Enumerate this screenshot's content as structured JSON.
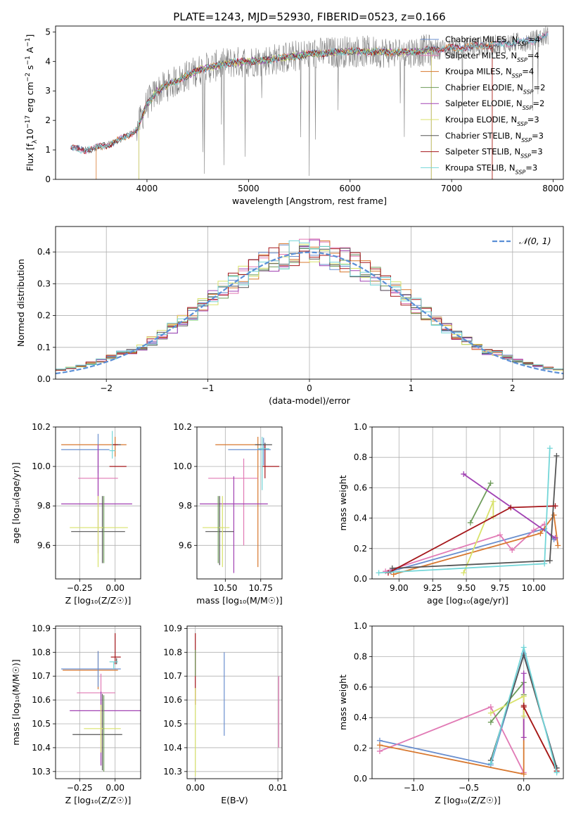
{
  "colors": {
    "series": [
      "#6a8fcf",
      "#e17ab5",
      "#d8782f",
      "#6e9c5a",
      "#a142b3",
      "#d8e26a",
      "#555555",
      "#a5171b",
      "#73d6d8"
    ],
    "grid": "#b0b0b0"
  },
  "chart_data": [
    {
      "id": "spectrum",
      "type": "line",
      "title": "PLATE=1243, MJD=52930, FIBERID=0523, z=0.166",
      "xlabel": "wavelength [Angstrom, rest frame]",
      "ylabel_parts": [
        "Flux [f",
        "λ",
        "10",
        "−17",
        " erg cm",
        "−2",
        " s",
        "−1",
        " A",
        "−1",
        "]"
      ],
      "xlim": [
        3100,
        8100
      ],
      "ylim": [
        0,
        5.2
      ],
      "xticks": [
        4000,
        5000,
        6000,
        7000,
        8000
      ],
      "yticks": [
        0,
        1,
        2,
        3,
        4,
        5
      ],
      "legend_position": "upper-right",
      "legend": [
        {
          "base": "Chabrier MILES, N",
          "sub": "SSP",
          "tail": "=4"
        },
        {
          "base": "Salpeter MILES, N",
          "sub": "SSP",
          "tail": "=4"
        },
        {
          "base": "Kroupa MILES, N",
          "sub": "SSP",
          "tail": "=4"
        },
        {
          "base": "Chabrier ELODIE, N",
          "sub": "SSP",
          "tail": "=2"
        },
        {
          "base": "Salpeter ELODIE, N",
          "sub": "SSP",
          "tail": "=2"
        },
        {
          "base": "Kroupa ELODIE, N",
          "sub": "SSP",
          "tail": "=3"
        },
        {
          "base": "Chabrier STELIB, N",
          "sub": "SSP",
          "tail": "=3"
        },
        {
          "base": "Salpeter STELIB, N",
          "sub": "SSP",
          "tail": "=3"
        },
        {
          "base": "Kroupa STELIB, N",
          "sub": "SSP",
          "tail": "=3"
        }
      ],
      "continuum": {
        "x": [
          3250,
          3400,
          3600,
          3800,
          3900,
          4000,
          4100,
          4300,
          4500,
          4800,
          5200,
          5600,
          6000,
          6500,
          7000,
          7400,
          7800,
          7950
        ],
        "y": [
          1.05,
          1.0,
          1.15,
          1.45,
          1.7,
          2.55,
          3.0,
          3.35,
          3.7,
          3.95,
          4.05,
          4.25,
          4.35,
          4.3,
          4.45,
          4.55,
          4.7,
          4.9
        ]
      }
    },
    {
      "id": "residuals",
      "type": "histogram",
      "xlabel": "(data-model)/error",
      "ylabel": "Normed distribution",
      "xlim": [
        -2.5,
        2.5
      ],
      "ylim": [
        0,
        0.48
      ],
      "xticks": [
        -2,
        -1,
        0,
        1,
        2
      ],
      "xtick_labels": [
        "−2",
        "−1",
        "0",
        "1",
        "2"
      ],
      "yticks": [
        0,
        0.1,
        0.2,
        0.3,
        0.4
      ],
      "yticklabels": [
        "0.0",
        "0.1",
        "0.2",
        "0.3",
        "0.4"
      ],
      "bin_width": 0.1,
      "legend_label": "𝒩(0, 1)",
      "legend_position": "upper-right",
      "grid": true
    },
    {
      "id": "age-vs-Z",
      "type": "errorbar",
      "xlabel": "Z [log₁₀(Z/Z☉)]",
      "ylabel": "age  [log₁₀(age/yr)]",
      "xlim": [
        -0.42,
        0.18
      ],
      "ylim": [
        9.43,
        10.2
      ],
      "xticks": [
        -0.25,
        0.0
      ],
      "xtick_labels": [
        "−0.25",
        "0.00"
      ],
      "yticks": [
        9.6,
        9.8,
        10.0,
        10.2
      ],
      "yticklabels": [
        "9.6",
        "9.8",
        "10.0",
        "10.2"
      ],
      "grid": true,
      "points": [
        {
          "x": 0.0,
          "y": 10.11,
          "xerr": [
            0.38,
            0.08
          ],
          "yerr": [
            0.06,
            0.04
          ],
          "series": 2
        },
        {
          "x": -0.12,
          "y": 10.085,
          "xerr": [
            0.26,
            0.08
          ],
          "yerr": [
            0.12,
            0.08
          ],
          "series": 0
        },
        {
          "x": 0.01,
          "y": 10.11,
          "xerr": [
            0.03,
            0.03
          ],
          "yerr": [
            0.0,
            0.0
          ],
          "series": 6
        },
        {
          "x": 0.0,
          "y": 10.11,
          "xerr": [
            0.02,
            0.02
          ],
          "yerr": [
            0.0,
            0.0
          ],
          "series": 7
        },
        {
          "x": 0.02,
          "y": 10.0,
          "xerr": [
            0.06,
            0.06
          ],
          "yerr": [
            0.0,
            0.0
          ],
          "series": 7
        },
        {
          "x": -0.02,
          "y": 10.08,
          "xerr": [
            0.02,
            0.02
          ],
          "yerr": [
            0.04,
            0.1
          ],
          "series": 8
        },
        {
          "x": -0.12,
          "y": 9.94,
          "xerr": [
            0.14,
            0.14
          ],
          "yerr": [
            0.12,
            0.14
          ],
          "series": 1
        },
        {
          "x": -0.12,
          "y": 9.81,
          "xerr": [
            0.26,
            0.24
          ],
          "yerr": [
            0.25,
            0.3
          ],
          "series": 4
        },
        {
          "x": -0.09,
          "y": 9.67,
          "xerr": [
            0.22,
            0.16
          ],
          "yerr": [
            0.16,
            0.18
          ],
          "series": 6
        },
        {
          "x": -0.12,
          "y": 9.69,
          "xerr": [
            0.2,
            0.21
          ],
          "yerr": [
            0.2,
            0.16
          ],
          "series": 5
        },
        {
          "x": -0.08,
          "y": 9.73,
          "xerr": [
            0.0,
            0.0
          ],
          "yerr": [
            0.22,
            0.12
          ],
          "series": 3
        }
      ]
    },
    {
      "id": "age-vs-mass",
      "type": "errorbar",
      "xlabel": "mass [log₁₀(M/M☉)]",
      "ylabel": "",
      "xlim": [
        10.3,
        10.9
      ],
      "ylim": [
        9.43,
        10.2
      ],
      "xticks": [
        10.5,
        10.75
      ],
      "xtick_labels": [
        "10.50",
        "10.75"
      ],
      "yticks": [
        9.6,
        9.8,
        10.0,
        10.2
      ],
      "yticklabels": [
        "9.6",
        "9.8",
        "10.0",
        "10.2"
      ],
      "grid": true,
      "points": [
        {
          "x": 10.73,
          "y": 10.11,
          "xerr": [
            0.3,
            0.04
          ],
          "yerr": [
            0.62,
            0.04
          ],
          "series": 2
        },
        {
          "x": 10.77,
          "y": 10.085,
          "xerr": [
            0.25,
            0.05
          ],
          "yerr": [
            0.08,
            0.06
          ],
          "series": 0
        },
        {
          "x": 10.78,
          "y": 10.11,
          "xerr": [
            0.07,
            0.05
          ],
          "yerr": [
            0.02,
            0.01
          ],
          "series": 6
        },
        {
          "x": 10.78,
          "y": 10.0,
          "xerr": [
            0.02,
            0.1
          ],
          "yerr": [
            0.06,
            0.11
          ],
          "series": 7
        },
        {
          "x": 10.76,
          "y": 10.09,
          "xerr": [
            0.03,
            0.05
          ],
          "yerr": [
            0.21,
            0.06
          ],
          "series": 8
        },
        {
          "x": 10.63,
          "y": 9.94,
          "xerr": [
            0.25,
            0.1
          ],
          "yerr": [
            0.34,
            0.1
          ],
          "series": 1
        },
        {
          "x": 10.56,
          "y": 9.81,
          "xerr": [
            0.24,
            0.24
          ],
          "yerr": [
            0.35,
            0.14
          ],
          "series": 4
        },
        {
          "x": 10.46,
          "y": 9.67,
          "xerr": [
            0.1,
            0.1
          ],
          "yerr": [
            0.17,
            0.18
          ],
          "series": 6
        },
        {
          "x": 10.48,
          "y": 9.69,
          "xerr": [
            0.14,
            0.05
          ],
          "yerr": [
            0.2,
            0.16
          ],
          "series": 5
        },
        {
          "x": 10.45,
          "y": 9.73,
          "xerr": [
            0.0,
            0.0
          ],
          "yerr": [
            0.22,
            0.12
          ],
          "series": 3
        }
      ]
    },
    {
      "id": "massweight-vs-age",
      "type": "line",
      "xlabel": "age  [log₁₀(age/yr)]",
      "ylabel": "mass weight",
      "xlim": [
        8.8,
        10.22
      ],
      "ylim": [
        0,
        1
      ],
      "xticks": [
        9.0,
        9.25,
        9.5,
        9.75,
        10.0
      ],
      "xtick_labels": [
        "9.00",
        "9.25",
        "9.50",
        "9.75",
        "10.00"
      ],
      "yticks": [
        0,
        0.2,
        0.4,
        0.6,
        0.8,
        1.0
      ],
      "yticklabels": [
        "0.0",
        "0.2",
        "0.4",
        "0.6",
        "0.8",
        "1.0"
      ],
      "grid": true,
      "series": [
        {
          "s": 0,
          "x": [
            8.94,
            10.08,
            10.15
          ],
          "y": [
            0.05,
            0.33,
            0.26
          ]
        },
        {
          "s": 1,
          "x": [
            8.9,
            9.75,
            9.84,
            10.0,
            10.08
          ],
          "y": [
            0.05,
            0.29,
            0.19,
            0.32,
            0.36
          ]
        },
        {
          "s": 2,
          "x": [
            8.96,
            10.05,
            10.15,
            10.18
          ],
          "y": [
            0.03,
            0.3,
            0.42,
            0.22
          ]
        },
        {
          "s": 3,
          "x": [
            9.53,
            9.68
          ],
          "y": [
            0.37,
            0.63
          ]
        },
        {
          "s": 4,
          "x": [
            9.48,
            10.16
          ],
          "y": [
            0.69,
            0.27
          ]
        },
        {
          "s": 5,
          "x": [
            9.48,
            9.7,
            9.7
          ],
          "y": [
            0.04,
            0.51,
            0.41
          ]
        },
        {
          "s": 6,
          "x": [
            8.95,
            10.12,
            10.17
          ],
          "y": [
            0.07,
            0.12,
            0.81
          ]
        },
        {
          "s": 7,
          "x": [
            8.92,
            9.83,
            10.16
          ],
          "y": [
            0.04,
            0.47,
            0.48
          ]
        },
        {
          "s": 8,
          "x": [
            8.85,
            10.08,
            10.12
          ],
          "y": [
            0.04,
            0.1,
            0.86
          ]
        }
      ]
    },
    {
      "id": "mass-vs-Z",
      "type": "errorbar",
      "xlabel": "Z [log₁₀(Z/Z☉)]",
      "ylabel": "mass [log₁₀(M/M☉)]",
      "xlim": [
        -0.42,
        0.18
      ],
      "ylim": [
        10.27,
        10.91
      ],
      "xticks": [
        -0.25,
        0.0
      ],
      "xtick_labels": [
        "−0.25",
        "0.00"
      ],
      "yticks": [
        10.3,
        10.4,
        10.5,
        10.6,
        10.7,
        10.8,
        10.9
      ],
      "yticklabels": [
        "10.3",
        "10.4",
        "10.5",
        "10.6",
        "10.7",
        "10.8",
        "10.9"
      ],
      "grid": true,
      "points": [
        {
          "x": -0.12,
          "y": 10.725,
          "xerr": [
            0.25,
            0.14
          ],
          "yerr": [
            0.08,
            0.08
          ],
          "series": 2
        },
        {
          "x": -0.12,
          "y": 10.73,
          "xerr": [
            0.26,
            0.16
          ],
          "yerr": [
            0.075,
            0.075
          ],
          "series": 0
        },
        {
          "x": 0.0,
          "y": 10.78,
          "xerr": [
            0.03,
            0.04
          ],
          "yerr": [
            0.03,
            0.1
          ],
          "series": 7
        },
        {
          "x": 0.01,
          "y": 10.775,
          "xerr": [
            0.0,
            0.0
          ],
          "yerr": [
            0.025,
            0.0
          ],
          "series": 6
        },
        {
          "x": -0.01,
          "y": 10.76,
          "xerr": [
            0.03,
            0.03
          ],
          "yerr": [
            0.03,
            0.0
          ],
          "series": 8
        },
        {
          "x": -0.1,
          "y": 10.63,
          "xerr": [
            0.17,
            0.1
          ],
          "yerr": [
            0.25,
            0.08
          ],
          "series": 1
        },
        {
          "x": -0.1,
          "y": 10.555,
          "xerr": [
            0.22,
            0.28
          ],
          "yerr": [
            0.23,
            0.08
          ],
          "series": 4
        },
        {
          "x": -0.09,
          "y": 10.455,
          "xerr": [
            0.21,
            0.14
          ],
          "yerr": [
            0.15,
            0.17
          ],
          "series": 6
        },
        {
          "x": -0.1,
          "y": 10.48,
          "xerr": [
            0.12,
            0.14
          ],
          "yerr": [
            0.1,
            0.1
          ],
          "series": 5
        },
        {
          "x": -0.08,
          "y": 10.46,
          "xerr": [
            0.0,
            0.0
          ],
          "yerr": [
            0.16,
            0.16
          ],
          "series": 3
        }
      ]
    },
    {
      "id": "mass-vs-EBV",
      "type": "errorbar",
      "xlabel": "E(B-V)",
      "ylabel": "",
      "xlim": [
        -0.001,
        0.0105
      ],
      "ylim": [
        10.27,
        10.91
      ],
      "xticks": [
        0.0,
        0.01
      ],
      "xtick_labels": [
        "0.00",
        "0.01"
      ],
      "yticks": [
        10.3,
        10.4,
        10.5,
        10.6,
        10.7,
        10.8,
        10.9
      ],
      "yticklabels": [
        "10.3",
        "10.4",
        "10.5",
        "10.6",
        "10.7",
        "10.8",
        "10.9"
      ],
      "grid": true,
      "points": [
        {
          "x": 0.0,
          "y": 10.66,
          "xerr": [
            0,
            0
          ],
          "yerr": [
            0.08,
            0.22
          ],
          "series": 7
        },
        {
          "x": 0.0,
          "y": 10.45,
          "xerr": [
            0,
            0
          ],
          "yerr": [
            0.17,
            0.2
          ],
          "series": 5
        },
        {
          "x": 0.0,
          "y": 10.73,
          "xerr": [
            0,
            0
          ],
          "yerr": [
            0.03,
            0.08
          ],
          "series": 3
        },
        {
          "x": 0.0035,
          "y": 10.63,
          "xerr": [
            0,
            0
          ],
          "yerr": [
            0.18,
            0.17
          ],
          "series": 0
        },
        {
          "x": 0.0101,
          "y": 10.55,
          "xerr": [
            0,
            0
          ],
          "yerr": [
            0.15,
            0.15
          ],
          "series": 1
        }
      ]
    },
    {
      "id": "massweight-vs-Z",
      "type": "line",
      "xlabel": "Z [log₁₀(Z/Z☉)]",
      "ylabel": "mass weight",
      "xlim": [
        -1.38,
        0.36
      ],
      "ylim": [
        0,
        1
      ],
      "xticks": [
        -1.0,
        -0.5,
        0.0
      ],
      "xtick_labels": [
        "−1.0",
        "−0.5",
        "0.0"
      ],
      "yticks": [
        0,
        0.2,
        0.4,
        0.6,
        0.8,
        1.0
      ],
      "yticklabels": [
        "0.0",
        "0.2",
        "0.4",
        "0.6",
        "0.8",
        "1.0"
      ],
      "grid": true,
      "series": [
        {
          "s": 0,
          "x": [
            -1.31,
            -0.3,
            0.0,
            0.3
          ],
          "y": [
            0.25,
            0.09,
            0.82,
            0.07
          ]
        },
        {
          "s": 1,
          "x": [
            -1.31,
            -0.3,
            0.0
          ],
          "y": [
            0.18,
            0.47,
            0.04
          ]
        },
        {
          "s": 2,
          "x": [
            -1.31,
            0.0,
            0.0,
            0.3
          ],
          "y": [
            0.22,
            0.03,
            0.47,
            0.05
          ]
        },
        {
          "s": 3,
          "x": [
            -0.3,
            0.0,
            0.0
          ],
          "y": [
            0.37,
            0.63,
            0.55
          ]
        },
        {
          "s": 4,
          "x": [
            0.0,
            0.0
          ],
          "y": [
            0.69,
            0.27
          ]
        },
        {
          "s": 5,
          "x": [
            -0.3,
            0.0,
            0.0
          ],
          "y": [
            0.43,
            0.54,
            0.41
          ]
        },
        {
          "s": 6,
          "x": [
            -0.3,
            0.0,
            0.3
          ],
          "y": [
            0.12,
            0.81,
            0.07
          ]
        },
        {
          "s": 7,
          "x": [
            0.0,
            0.0,
            0.3
          ],
          "y": [
            0.48,
            0.47,
            0.05
          ]
        },
        {
          "s": 8,
          "x": [
            -0.3,
            0.0,
            0.3
          ],
          "y": [
            0.1,
            0.86,
            0.04
          ]
        }
      ]
    }
  ]
}
